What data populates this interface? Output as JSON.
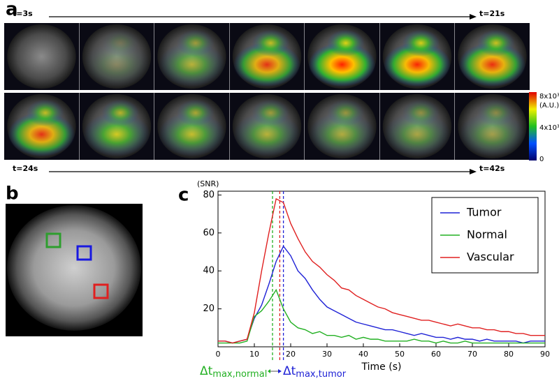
{
  "panels": {
    "a": {
      "label": "a",
      "start_top": "t=3s",
      "end_top": "t=21s",
      "start_bottom": "t=24s",
      "end_bottom": "t=42s",
      "colorbar": {
        "max": "8x10³",
        "unit": "(A.U.)",
        "mid": "4x10³",
        "min": "0"
      }
    },
    "b": {
      "label": "b"
    },
    "c": {
      "label": "c"
    }
  },
  "chart_data": {
    "type": "line",
    "y_label": "(SNR)",
    "x_label": "Time (s)",
    "x": [
      0,
      2,
      4,
      6,
      8,
      10,
      12,
      14,
      16,
      18,
      20,
      22,
      24,
      26,
      28,
      30,
      32,
      34,
      36,
      38,
      40,
      42,
      44,
      46,
      48,
      50,
      52,
      54,
      56,
      58,
      60,
      62,
      64,
      66,
      68,
      70,
      72,
      74,
      76,
      78,
      80,
      82,
      84,
      86,
      88,
      90
    ],
    "series": [
      {
        "name": "Tumor",
        "color": "#1f22d6",
        "values": [
          3,
          3,
          2,
          3,
          4,
          15,
          22,
          33,
          45,
          53,
          48,
          40,
          36,
          30,
          25,
          21,
          19,
          17,
          15,
          13,
          12,
          11,
          10,
          9,
          9,
          8,
          7,
          6,
          7,
          6,
          5,
          5,
          4,
          5,
          4,
          4,
          3,
          4,
          3,
          3,
          3,
          3,
          2,
          3,
          3,
          3
        ]
      },
      {
        "name": "Normal",
        "color": "#22b022",
        "values": [
          2,
          2,
          2,
          2,
          3,
          16,
          19,
          24,
          30,
          20,
          13,
          10,
          9,
          7,
          8,
          6,
          6,
          5,
          6,
          4,
          5,
          4,
          4,
          3,
          3,
          3,
          3,
          4,
          3,
          3,
          2,
          3,
          2,
          2,
          3,
          2,
          2,
          2,
          2,
          2,
          2,
          2,
          2,
          2,
          2,
          2
        ]
      },
      {
        "name": "Vascular",
        "color": "#e02020",
        "values": [
          3,
          3,
          2,
          3,
          4,
          18,
          40,
          60,
          78,
          76,
          65,
          57,
          50,
          45,
          42,
          38,
          35,
          31,
          30,
          27,
          25,
          23,
          21,
          20,
          18,
          17,
          16,
          15,
          14,
          14,
          13,
          12,
          11,
          12,
          11,
          10,
          10,
          9,
          9,
          8,
          8,
          7,
          7,
          6,
          6,
          6
        ]
      }
    ],
    "peak_lines": [
      {
        "x": 15,
        "color": "#22b022"
      },
      {
        "x": 17,
        "color": "#e02020"
      },
      {
        "x": 18,
        "color": "#1f22d6"
      }
    ],
    "annotations": [
      {
        "symbol": "Δt",
        "subscript": "max,normal",
        "color": "#22b022"
      },
      {
        "symbol": "Δt",
        "subscript": "max,tumor",
        "color": "#1f22d6"
      }
    ],
    "xlim": [
      0,
      90
    ],
    "ylim": [
      0,
      82
    ],
    "xticks": [
      0,
      10,
      20,
      30,
      40,
      50,
      60,
      70,
      80,
      90
    ],
    "yticks": [
      20,
      40,
      60,
      80
    ],
    "legend": "upper right"
  }
}
